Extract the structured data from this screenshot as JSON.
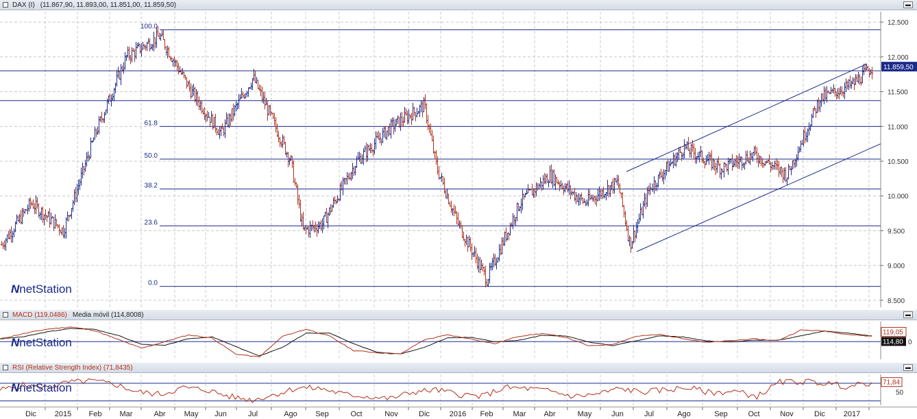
{
  "panels": {
    "price": {
      "title_parts": [
        "DAX (I)",
        "(11.867,90, 11.893,00, 11.851,00, 11.859,50)"
      ]
    },
    "macd": {
      "title_parts": [
        "MACD (119,0486)",
        "Media móvil (114,8008)"
      ]
    },
    "rsi": {
      "title_parts": [
        "RSI (Relative Strength Index) (71,8435)"
      ]
    }
  },
  "watermark": "netStation",
  "colors": {
    "up": "#1a2a8a",
    "down": "#b03018",
    "line": "#1a2a8a",
    "macd": "#b03018",
    "signal": "#111111",
    "rsi": "#b03018",
    "last_bg": "#1a2a8a"
  },
  "chart_data": [
    {
      "type": "candlestick",
      "series_name": "DAX (I)",
      "ohlc_last": {
        "open": 11867.9,
        "high": 11893.0,
        "low": 11851.0,
        "close": 11859.5
      },
      "ylim": [
        8400,
        12650
      ],
      "y_ticks": [
        "12.500",
        "12.000",
        "11.500",
        "11.000",
        "10.500",
        "10.000",
        "9.500",
        "9.000",
        "8.500"
      ],
      "y_tick_values": [
        12500,
        12000,
        11500,
        11000,
        10500,
        10000,
        9500,
        9000,
        8500
      ],
      "last_value_label": "11.859,50",
      "last_value": 11859.5,
      "x_labels": [
        "Dic",
        "2015",
        "Feb",
        "Mar",
        "Abr",
        "May",
        "Jun",
        "Jul",
        "Ago",
        "Sep",
        "Oct",
        "Nov",
        "Dic",
        "2016",
        "Feb",
        "Mar",
        "Abr",
        "May",
        "Jun",
        "Jul",
        "Ago",
        "Sep",
        "Oct",
        "Nov",
        "Dic",
        "2017"
      ],
      "fibonacci": {
        "labels": [
          "100.0",
          "61.8",
          "50.0",
          "38.2",
          "23.6",
          "0.0"
        ],
        "values": [
          12390,
          11000,
          10530,
          10100,
          9570,
          8700
        ]
      },
      "horizontal_lines": [
        11800,
        11370
      ],
      "channel": {
        "upper": [
          {
            "date": "Jun 2016",
            "value": 10350
          },
          {
            "date": "Dic 2016",
            "value": 11900
          }
        ],
        "lower": [
          {
            "date": "Jun 2016",
            "value": 9200
          },
          {
            "date": "Ene 2017",
            "value": 10750
          }
        ]
      },
      "key_points": [
        {
          "date": "Nov 2014",
          "value": 9300
        },
        {
          "date": "Dic 2014",
          "value": 9900
        },
        {
          "date": "Ene 2015",
          "value": 9500
        },
        {
          "date": "Feb 2015",
          "value": 10900
        },
        {
          "date": "Mar 2015",
          "value": 12000
        },
        {
          "date": "Abr 2015",
          "value": 12300
        },
        {
          "date": "May 2015",
          "value": 11500
        },
        {
          "date": "Jun 2015",
          "value": 10900
        },
        {
          "date": "Jul 2015",
          "value": 11700
        },
        {
          "date": "Ago 2015",
          "value": 10500
        },
        {
          "date": "Ago 2015",
          "value": 9500
        },
        {
          "date": "Sep 2015",
          "value": 9600
        },
        {
          "date": "Oct 2015",
          "value": 10500
        },
        {
          "date": "Nov 2015",
          "value": 11000
        },
        {
          "date": "Dic 2015",
          "value": 11300
        },
        {
          "date": "Dic 2015",
          "value": 10400
        },
        {
          "date": "Ene 2016",
          "value": 9600
        },
        {
          "date": "Feb 2016",
          "value": 8800
        },
        {
          "date": "Mar 2016",
          "value": 9900
        },
        {
          "date": "Abr 2016",
          "value": 10300
        },
        {
          "date": "May 2016",
          "value": 9900
        },
        {
          "date": "Jun 2016",
          "value": 10200
        },
        {
          "date": "Jun 2016",
          "value": 9300
        },
        {
          "date": "Jul 2016",
          "value": 10100
        },
        {
          "date": "Ago 2016",
          "value": 10700
        },
        {
          "date": "Sep 2016",
          "value": 10400
        },
        {
          "date": "Oct 2016",
          "value": 10600
        },
        {
          "date": "Nov 2016",
          "value": 10300
        },
        {
          "date": "Dic 2016",
          "value": 11400
        },
        {
          "date": "Ene 2017",
          "value": 11600
        },
        {
          "date": "Ene 2017",
          "value": 11850
        }
      ]
    },
    {
      "type": "line",
      "series_name": "MACD",
      "series": [
        {
          "name": "MACD (119,0486)",
          "last": 119.05
        },
        {
          "name": "Media móvil (114,8008)",
          "last": 114.8
        }
      ],
      "last_labels": [
        "119,05",
        "114,80"
      ],
      "y_ticks": [
        "0"
      ],
      "ylim": [
        -400,
        450
      ],
      "key_points": [
        60,
        180,
        280,
        330,
        250,
        50,
        -150,
        0,
        150,
        80,
        -280,
        -350,
        120,
        280,
        120,
        -200,
        -250,
        -280,
        40,
        150,
        60,
        -50,
        120,
        180,
        100,
        -100,
        -60,
        120,
        160,
        70,
        -20,
        20,
        60,
        20,
        260,
        240,
        160,
        119
      ]
    },
    {
      "type": "line",
      "series_name": "RSI",
      "series": [
        {
          "name": "RSI (Relative Strength Index) (71,8435)",
          "last": 71.84
        }
      ],
      "last_label": "71,84",
      "y_ticks": [
        "50"
      ],
      "ylim": [
        20,
        90
      ],
      "reference_levels": [
        70,
        30
      ],
      "key_points": [
        55,
        65,
        60,
        72,
        75,
        68,
        50,
        45,
        60,
        55,
        40,
        32,
        45,
        60,
        58,
        45,
        40,
        35,
        50,
        55,
        45,
        40,
        60,
        58,
        52,
        40,
        45,
        58,
        50,
        55,
        60,
        48,
        52,
        40,
        72,
        74,
        70,
        62,
        72
      ]
    }
  ]
}
